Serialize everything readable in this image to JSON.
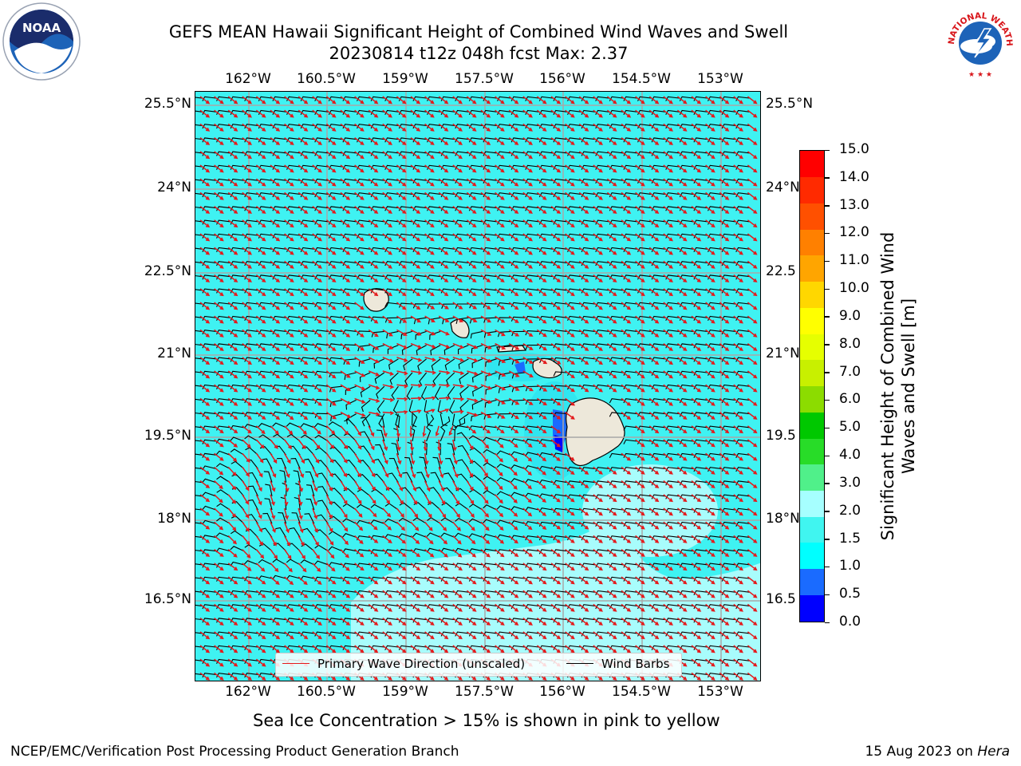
{
  "title": {
    "line1": "GEFS MEAN Hawaii Significant Height of Combined Wind Waves and Swell",
    "line2": "20230814 t12z 048h fcst   Max: 2.37"
  },
  "logos": {
    "left": {
      "icon": "noaa-logo",
      "text": "NOAA"
    },
    "right": {
      "icon": "nws-logo",
      "text": "NATIONAL WEATHER SERVICE"
    }
  },
  "axes": {
    "lon_labels": [
      "162°W",
      "160.5°W",
      "159°W",
      "157.5°W",
      "156°W",
      "154.5°W",
      "153°W"
    ],
    "lat_labels": [
      "25.5°N",
      "24°N",
      "22.5°N",
      "21°N",
      "19.5°N",
      "18°N",
      "16.5°N"
    ],
    "right_lat_labels": [
      "25.5°N",
      "24°N",
      "22.5",
      "21°N",
      "19.5",
      "18°N",
      "16.5"
    ]
  },
  "legend": {
    "wave_label": "Primary Wave Direction (unscaled)",
    "wave_color": "#e41a1c",
    "barb_label": "Wind Barbs",
    "barb_color": "#000000"
  },
  "colorbar": {
    "title": "Significant Height of Combined Wind Waves and Swell [m]",
    "tick_labels": [
      "15.0",
      "14.0",
      "13.0",
      "12.0",
      "11.0",
      "10.0",
      "9.0",
      "8.0",
      "7.0",
      "6.0",
      "5.0",
      "4.0",
      "3.0",
      "2.0",
      "1.5",
      "1.0",
      "0.5",
      "0.0"
    ],
    "colors_bottom_to_top": [
      "#0000ff",
      "#1a6bff",
      "#00ffff",
      "#40f5f0",
      "#a6ffff",
      "#50f08a",
      "#28dc28",
      "#00c800",
      "#8cdc00",
      "#c8f000",
      "#e6ff00",
      "#ffff00",
      "#ffd700",
      "#ffa500",
      "#ff8000",
      "#ff5000",
      "#ff2a00",
      "#ff0000"
    ]
  },
  "field": {
    "ocean_color": "#3ff2f2",
    "light_swell_color": "#a8fcfc",
    "land_color": "#ede8da",
    "max_value": 2.37
  },
  "footer": {
    "note": "Sea Ice Concentration > 15% is shown in pink to yellow",
    "left": "NCEP/EMC/Verification Post Processing Product Generation Branch",
    "right_prefix": "15 Aug 2023 on ",
    "right_host": "Hera"
  }
}
